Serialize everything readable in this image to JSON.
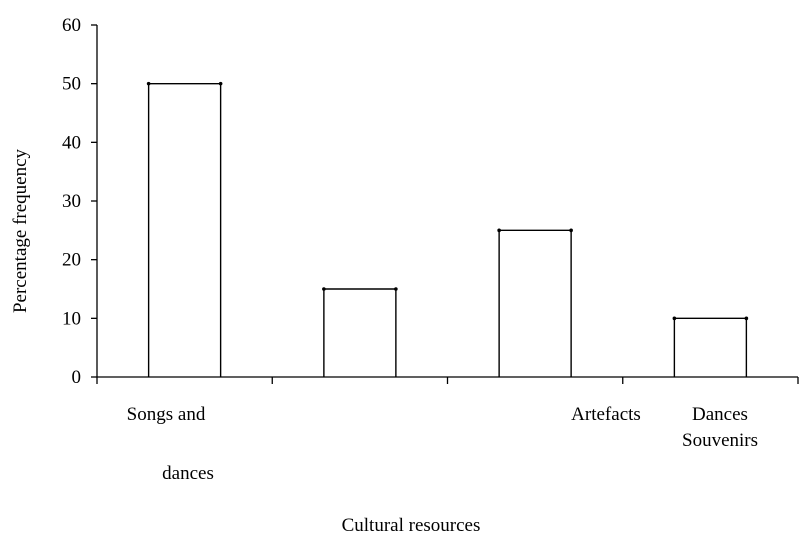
{
  "chart_data": {
    "type": "bar",
    "title": "",
    "xlabel": "Cultural resources",
    "ylabel": "Percentage frequency",
    "ylim": [
      0,
      60
    ],
    "yticks": [
      0,
      10,
      20,
      30,
      40,
      50,
      60
    ],
    "grid": false,
    "categories": [
      "Songs and dances",
      "",
      "Artefacts",
      "Dances Souvenirs"
    ],
    "category_label_lines": [
      [
        "Songs and",
        "dances"
      ],
      [],
      [
        "Artefacts"
      ],
      [
        "Dances",
        "Souvenirs"
      ]
    ],
    "values": [
      50,
      15,
      25,
      10
    ]
  }
}
